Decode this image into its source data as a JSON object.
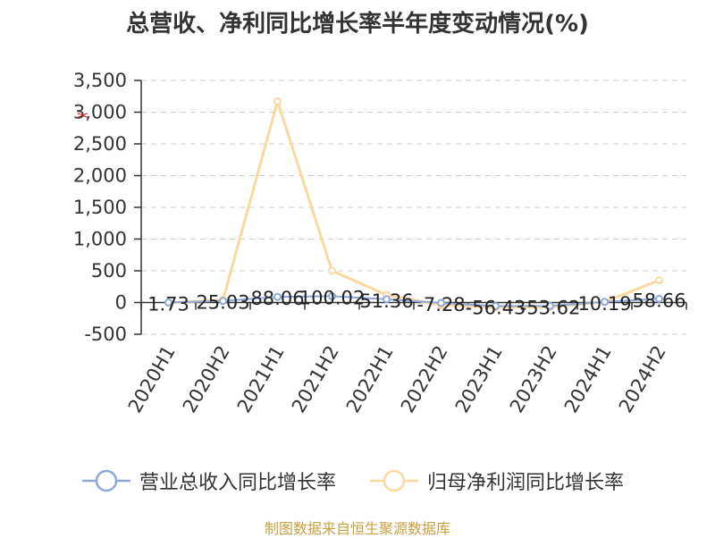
{
  "chart_data": {
    "type": "line",
    "title": "总营收、净利同比增长率半年度变动情况(%)",
    "categories": [
      "2020H1",
      "2020H2",
      "2021H1",
      "2021H2",
      "2022H1",
      "2022H2",
      "2023H1",
      "2023H2",
      "2024H1",
      "2024H2"
    ],
    "ylim": [
      -500,
      3500
    ],
    "yticks": [
      -500,
      0,
      500,
      1000,
      1500,
      2000,
      2500,
      3000,
      3500
    ],
    "ytick_labels": [
      "-500",
      "0",
      "500",
      "1,000",
      "1,500",
      "2,000",
      "2,500",
      "3,000",
      "3,500"
    ],
    "grid": true,
    "legend_position": "bottom",
    "series": [
      {
        "name": "营业总收入同比增长率",
        "color": "#8ea8d8",
        "values": [
          1.73,
          25.03,
          88.06,
          100.02,
          51.36,
          -7.28,
          -56.43,
          -53.62,
          10.19,
          58.66
        ],
        "data_labels": [
          "1.73",
          "25.03",
          "88.06",
          "100.02",
          "51.36",
          "-7.28",
          "-56.43",
          "-53.62",
          "10.19",
          "58.66"
        ]
      },
      {
        "name": "归母净利润同比增长率",
        "color": "#fbd8a0",
        "values": [
          -5,
          40,
          3170,
          500,
          120,
          -40,
          -75,
          -70,
          10,
          350
        ]
      }
    ]
  },
  "source_note": "制图数据来自恒生聚源数据库",
  "icons": {
    "toolbox": "scissors-icon"
  }
}
